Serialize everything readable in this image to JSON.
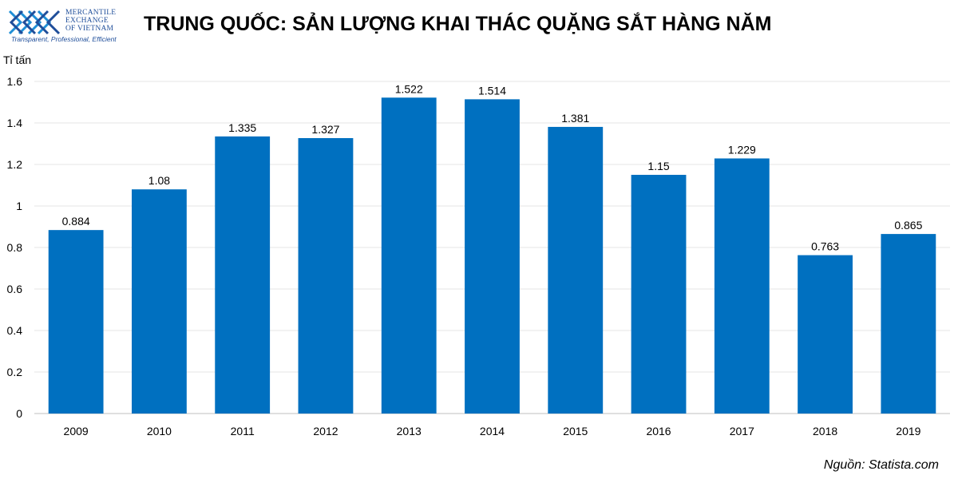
{
  "logo": {
    "line1": "MERCANTILE",
    "line2": "EXCHANGE",
    "line3": "OF VIETNAM",
    "tagline": "Transparent, Professional, Efficient",
    "color": "#1f4e9a"
  },
  "title": "TRUNG QUỐC: SẢN LƯỢNG KHAI THÁC QUẶNG SẮT HÀNG NĂM",
  "source": "Nguồn: Statista.com",
  "chart_data": {
    "type": "bar",
    "title": "TRUNG QUỐC: SẢN LƯỢNG KHAI THÁC QUẶNG SẮT HÀNG NĂM",
    "ylabel": "Tỉ tấn",
    "xlabel": "",
    "categories": [
      "2009",
      "2010",
      "2011",
      "2012",
      "2013",
      "2014",
      "2015",
      "2016",
      "2017",
      "2018",
      "2019"
    ],
    "values": [
      0.884,
      1.08,
      1.335,
      1.327,
      1.522,
      1.514,
      1.381,
      1.15,
      1.229,
      0.763,
      0.865
    ],
    "data_labels": [
      "0.884",
      "1.08",
      "1.335",
      "1.327",
      "1.522",
      "1.514",
      "1.381",
      "1.15",
      "1.229",
      "0.763",
      "0.865"
    ],
    "ylim": [
      0,
      1.6
    ],
    "yticks": [
      "0",
      "0.2",
      "0.4",
      "0.6",
      "0.8",
      "1",
      "1.2",
      "1.4",
      "1.6"
    ],
    "grid": true,
    "bar_color": "#0070c0"
  }
}
